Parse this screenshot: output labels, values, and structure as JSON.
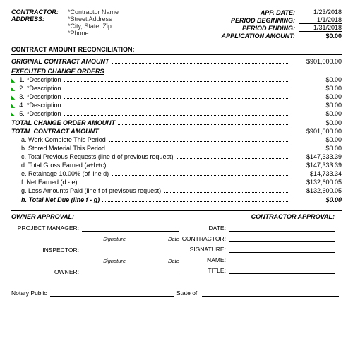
{
  "header": {
    "left": {
      "contractor_label": "CONTRACTOR:",
      "address_label": "ADDRESS:",
      "contractor_name": "*Contractor Name",
      "street": "*Street Address",
      "city": "*City, State, Zip",
      "phone": "*Phone"
    },
    "right": {
      "app_date_label": "APP. DATE:",
      "app_date": "1/23/2018",
      "period_begin_label": "PERIOD BEGINNING:",
      "period_begin": "1/1/2018",
      "period_end_label": "PERIOD ENDING:",
      "period_end": "1/31/2018",
      "app_amount_label": "APPLICATION AMOUNT:",
      "app_amount": "$0.00"
    }
  },
  "sections": {
    "reconciliation": "CONTRACT AMOUNT RECONCILIATION:",
    "original_label": "ORIGINAL CONTRACT AMOUNT",
    "original_amount": "$901,000.00",
    "change_orders_hdr": "EXECUTED CHANGE ORDERS",
    "change_orders": [
      {
        "n": "1.",
        "desc": "*Description",
        "amt": "$0.00"
      },
      {
        "n": "2.",
        "desc": "*Description",
        "amt": "$0.00"
      },
      {
        "n": "3.",
        "desc": "*Description",
        "amt": "$0.00"
      },
      {
        "n": "4.",
        "desc": "*Description",
        "amt": "$0.00"
      },
      {
        "n": "5.",
        "desc": "*Description",
        "amt": "$0.00"
      }
    ],
    "total_change_label": "TOTAL CHANGE ORDER AMOUNT",
    "total_change_amt": "$0.00",
    "total_contract_label": "TOTAL CONTRACT AMOUNT",
    "total_contract_amt": "$901,000.00",
    "lines": [
      {
        "l": "a.  Work Complete This Period",
        "a": "$0.00"
      },
      {
        "l": "b.  Stored Material This Period",
        "a": "$0.00"
      },
      {
        "l": "c.  Total Previous Requests (line d of previous request)",
        "a": "$147,333.39"
      },
      {
        "l": "d.  Total Gross Earned (a+b+c)",
        "a": "$147,333.39"
      },
      {
        "l": "e.  Retainage          10.00%  (of line d)",
        "a": "$14,733.34"
      },
      {
        "l": "f.   Net Earned (d - e)",
        "a": "$132,600.05"
      },
      {
        "l": "g.  Less Amounts Paid (line f of previsous request)",
        "a": "$132,600.05"
      }
    ],
    "net_due_label": "h.  Total Net Due (line f - g)",
    "net_due_amt": "$0.00"
  },
  "approval": {
    "owner_title": "OWNER APPROVAL:",
    "contractor_title": "CONTRACTOR APPROVAL:",
    "pm": "PROJECT MANAGER:",
    "inspector": "INSPECTOR:",
    "owner": "OWNER:",
    "sig": "Signature",
    "date": "Date",
    "r_date": "DATE:",
    "r_contractor": "CONTRACTOR:",
    "r_signature": "SIGNATURE:",
    "r_name": "NAME:",
    "r_title": "TITLE:"
  },
  "notary": {
    "np": "Notary Public",
    "state": "State of:"
  }
}
